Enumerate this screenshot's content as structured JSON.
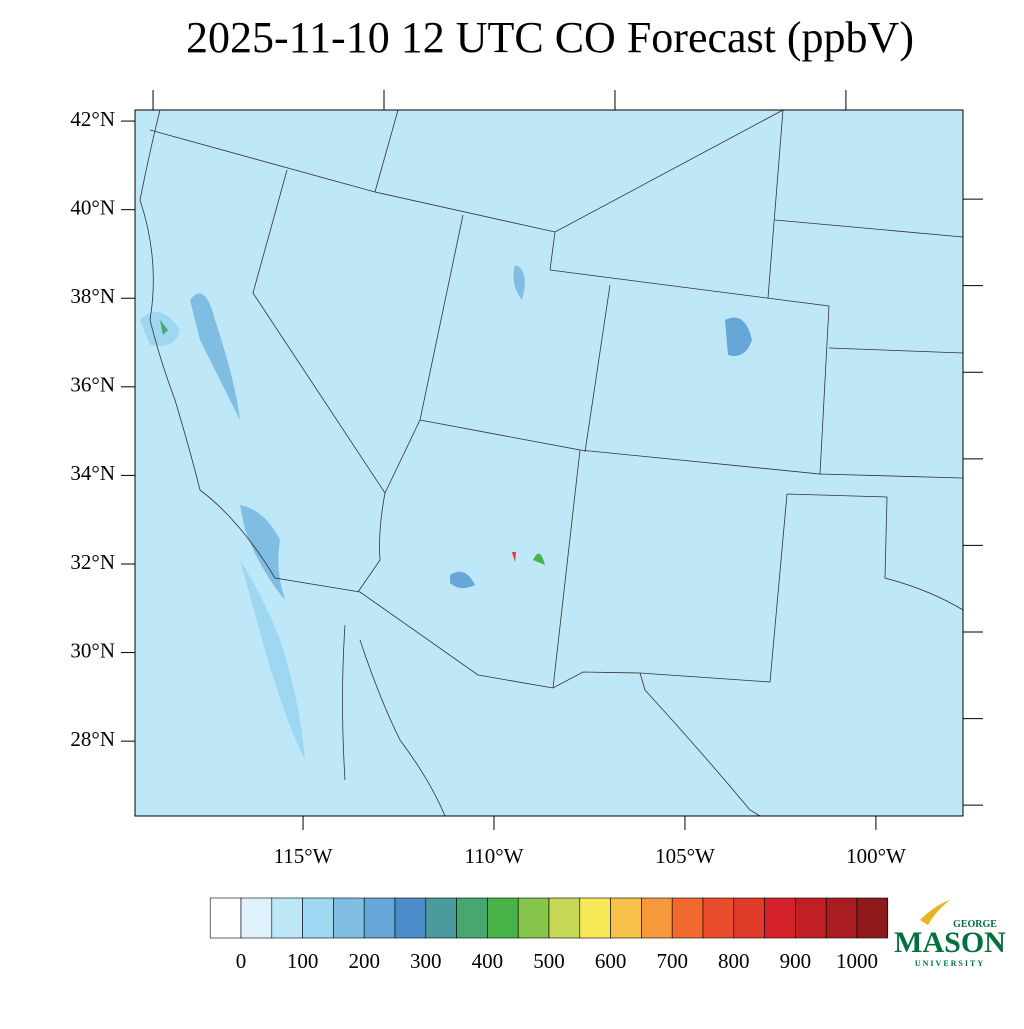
{
  "chart_data": {
    "type": "map",
    "title": "2025-11-10 12 UTC CO Forecast (ppbV)",
    "xlim": [
      -119.4,
      -97.72
    ],
    "ylim": [
      26.31,
      42.25
    ],
    "fill_color": "#bee7f8",
    "yticks": [
      {
        "value": 28,
        "label": "28°N"
      },
      {
        "value": 30,
        "label": "30°N"
      },
      {
        "value": 32,
        "label": "32°N"
      },
      {
        "value": 34,
        "label": "34°N"
      },
      {
        "value": 36,
        "label": "36°N"
      },
      {
        "value": 38,
        "label": "38°N"
      },
      {
        "value": 40,
        "label": "40°N"
      },
      {
        "value": 42,
        "label": "42°N"
      }
    ],
    "xticks": [
      {
        "value": -115,
        "label": "115°W"
      },
      {
        "value": -110,
        "label": "110°W"
      },
      {
        "value": -105,
        "label": "105°W"
      },
      {
        "value": -100,
        "label": "100°W"
      }
    ],
    "colorbar": {
      "ticks": [
        0,
        100,
        200,
        300,
        400,
        500,
        600,
        700,
        800,
        900,
        1000
      ],
      "colors": [
        "#ffffff",
        "#dff2fb",
        "#bde6f7",
        "#9dd7f2",
        "#80bde3",
        "#66a7d8",
        "#4d8ccb",
        "#4a9a9e",
        "#48a771",
        "#48b348",
        "#88c54c",
        "#c5d755",
        "#f7e858",
        "#f7c04a",
        "#f5993c",
        "#f06a30",
        "#e84c2a",
        "#e03a28",
        "#d42129",
        "#c01f26",
        "#a91c22",
        "#8e1a1c"
      ]
    },
    "logo": {
      "top": "GEORGE",
      "main": "MASON",
      "bottom": "UNIVERSITY"
    }
  }
}
